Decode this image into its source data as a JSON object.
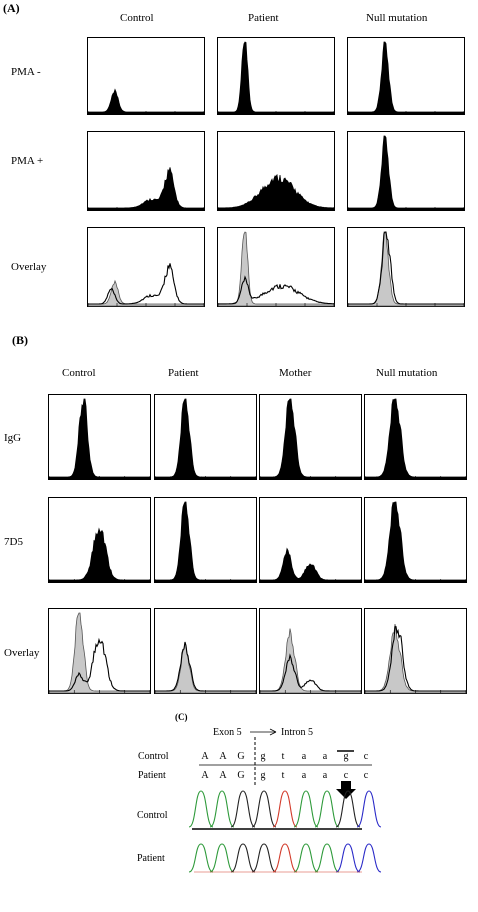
{
  "panelA": {
    "letter": "(A)",
    "columns": [
      "Control",
      "Patient",
      "Null mutation"
    ],
    "rows": [
      "PMA -",
      "PMA +",
      "Overlay"
    ]
  },
  "panelB": {
    "letter": "(B)",
    "columns": [
      "Control",
      "Patient",
      "Mother",
      "Null mutation"
    ],
    "rows": [
      "IgG",
      "7D5",
      "Overlay"
    ]
  },
  "panelC": {
    "letter": "(C)",
    "exon_label": "Exon 5",
    "intron_label": "Intron 5",
    "rows": [
      {
        "name": "Control",
        "bases": [
          "A",
          "A",
          "G",
          "g",
          "t",
          "a",
          "a",
          "g",
          "c"
        ]
      },
      {
        "name": "Patient",
        "bases": [
          "A",
          "A",
          "G",
          "g",
          "t",
          "a",
          "a",
          "c",
          "c"
        ]
      }
    ],
    "trace_rows": [
      "Control",
      "Patient"
    ],
    "colors": {
      "A": "#2e9a3a",
      "G": "#222222",
      "T": "#d23a2a",
      "C": "#2a2ac8"
    }
  }
}
